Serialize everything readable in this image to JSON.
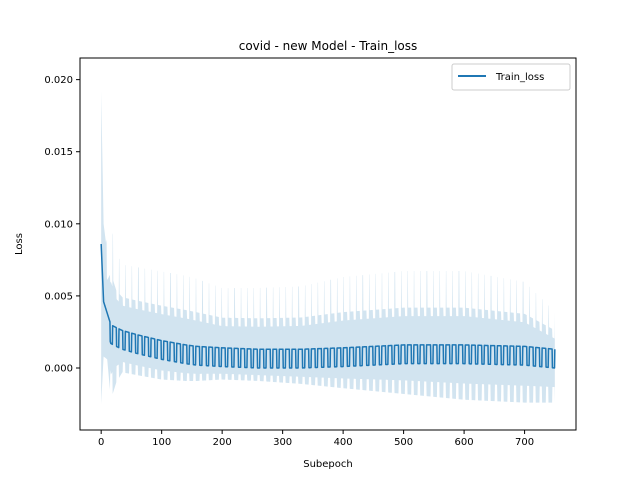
{
  "chart_data": {
    "type": "line",
    "title": "covid - new Model - Train_loss",
    "xlabel": "Subepoch",
    "ylabel": "Loss",
    "xlim": [
      -35,
      785
    ],
    "ylim": [
      -0.0043,
      0.0215
    ],
    "xticks": [
      0,
      100,
      200,
      300,
      400,
      500,
      600,
      700
    ],
    "yticks": [
      0.0,
      0.005,
      0.01,
      0.015,
      0.02
    ],
    "ytick_labels": [
      "0.000",
      "0.005",
      "0.010",
      "0.015",
      "0.020"
    ],
    "xtick_labels": [
      "0",
      "100",
      "200",
      "300",
      "400",
      "500",
      "600",
      "700"
    ],
    "grid": false,
    "legend": {
      "position": "top-right",
      "entries": [
        "Train_loss"
      ]
    },
    "colors": {
      "line": "#1f77b4",
      "band": "#1f77b4"
    },
    "series": [
      {
        "name": "Train_loss",
        "anchors": [
          {
            "x": 0,
            "y": 0.0086,
            "lo": -0.0025,
            "hi": 0.0192
          },
          {
            "x": 4,
            "y": 0.0046,
            "lo": 0.0008,
            "hi": 0.01
          },
          {
            "x": 10,
            "y": 0.0038,
            "lo": 0.0006,
            "hi": 0.008
          },
          {
            "x": 16,
            "y": 0.003,
            "lo": -0.0022,
            "hi": 0.0095
          },
          {
            "x": 25,
            "y": 0.0028,
            "lo": -0.001,
            "hi": 0.0075
          },
          {
            "x": 35,
            "y": 0.0026,
            "lo": -0.0003,
            "hi": 0.0068
          },
          {
            "x": 60,
            "y": 0.0023,
            "lo": -0.0005,
            "hi": 0.0066
          },
          {
            "x": 100,
            "y": 0.0019,
            "lo": -0.0008,
            "hi": 0.0063
          },
          {
            "x": 140,
            "y": 0.0016,
            "lo": -0.0009,
            "hi": 0.006
          },
          {
            "x": 158,
            "y": 0.0015,
            "lo": -0.0009,
            "hi": 0.0058
          },
          {
            "x": 200,
            "y": 0.0014,
            "lo": -0.0008,
            "hi": 0.0052
          },
          {
            "x": 260,
            "y": 0.0013,
            "lo": -0.0009,
            "hi": 0.0052
          },
          {
            "x": 330,
            "y": 0.0013,
            "lo": -0.0011,
            "hi": 0.0053
          },
          {
            "x": 400,
            "y": 0.0014,
            "lo": -0.0014,
            "hi": 0.0059
          },
          {
            "x": 500,
            "y": 0.0016,
            "lo": -0.0018,
            "hi": 0.0063
          },
          {
            "x": 600,
            "y": 0.0016,
            "lo": -0.0022,
            "hi": 0.0063
          },
          {
            "x": 700,
            "y": 0.0015,
            "lo": -0.0024,
            "hi": 0.0056
          },
          {
            "x": 750,
            "y": 0.0013,
            "lo": -0.0024,
            "hi": 0.0037
          }
        ]
      }
    ]
  }
}
